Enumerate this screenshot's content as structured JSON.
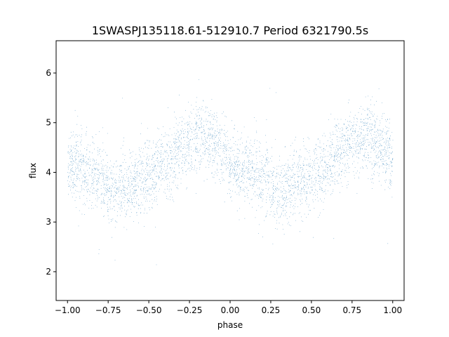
{
  "chart_data": {
    "type": "scatter",
    "title": "1SWASPJ135118.61-512910.7 Period 6321790.5s",
    "xlabel": "phase",
    "ylabel": "flux",
    "xlim": [
      -1.07,
      1.07
    ],
    "ylim": [
      1.42,
      6.65
    ],
    "xticks": [
      -1.0,
      -0.75,
      -0.5,
      -0.25,
      0.0,
      0.25,
      0.5,
      0.75,
      1.0
    ],
    "xtick_labels": [
      "−1.00",
      "−0.75",
      "−0.50",
      "−0.25",
      "0.00",
      "0.25",
      "0.50",
      "0.75",
      "1.00"
    ],
    "yticks": [
      2,
      3,
      4,
      5,
      6
    ],
    "ytick_labels": [
      "2",
      "3",
      "4",
      "5",
      "6"
    ],
    "grid": false,
    "marker_color": "#1f77b4",
    "series": [
      {
        "profile_x": [
          0.0,
          0.05,
          0.1,
          0.15,
          0.2,
          0.25,
          0.3,
          0.35,
          0.4,
          0.45,
          0.5,
          0.55,
          0.6,
          0.65,
          0.7,
          0.75,
          0.8,
          0.85,
          0.9,
          0.95,
          1.0
        ],
        "profile_y": [
          4.2,
          4.1,
          4.05,
          4.0,
          3.9,
          3.75,
          3.65,
          3.7,
          3.8,
          3.85,
          3.95,
          4.05,
          4.15,
          4.3,
          4.5,
          4.6,
          4.7,
          4.65,
          4.55,
          4.45,
          4.2
        ],
        "scatter_sigma": 0.35,
        "points_per_unit_phase": 4000
      }
    ]
  }
}
